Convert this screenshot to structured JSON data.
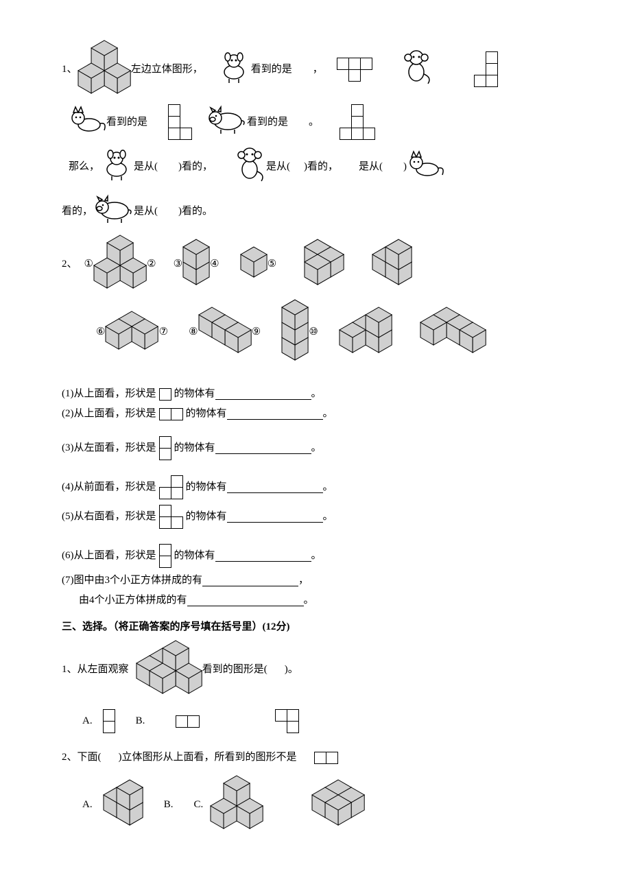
{
  "cell": 18,
  "isoCell": 22,
  "colors": {
    "cubeFill": "#d0d0d0",
    "cubeStroke": "#000000",
    "animalStroke": "#000000",
    "animalFill": "#ffffff"
  },
  "q1": {
    "num": "1、",
    "t1a": "左边立体图形，",
    "t1b": "看到的是",
    "comma": "，",
    "t2": "看到的是",
    "t3": "看到的是",
    "period": "。",
    "line3a": "那么，",
    "line3b": "是从(",
    "line3c": ")看的，",
    "line3d": "是从(",
    "line3e": ")看的，",
    "line3f": "是从(",
    "line3g": ")",
    "line4a": "看的，",
    "line4b": "是从(",
    "line4c": ")看的。",
    "animals": {
      "dog": "dog",
      "monkey": "monkey",
      "cat": "cat",
      "pig": "pig"
    }
  },
  "q2": {
    "num": "2、",
    "labels": [
      "①",
      "②",
      "③",
      "④",
      "⑤",
      "⑥",
      "⑦",
      "⑧",
      "⑨",
      "⑩"
    ],
    "sub": [
      {
        "pre": "(1)从上面看，形状是",
        "grid": [
          [
            1
          ]
        ],
        "post": "的物体有"
      },
      {
        "pre": "(2)从上面看，形状是",
        "grid": [
          [
            1,
            1
          ]
        ],
        "post": "的物体有"
      },
      {
        "pre": "(3)从左面看，形状是",
        "grid": [
          [
            1
          ],
          [
            1
          ]
        ],
        "post": "的物体有"
      },
      {
        "pre": "(4)从前面看，形状是",
        "grid": [
          [
            0,
            1
          ],
          [
            1,
            1
          ]
        ],
        "post": "的物体有"
      },
      {
        "pre": "(5)从右面看，形状是",
        "grid": [
          [
            1,
            0
          ],
          [
            1,
            1
          ]
        ],
        "post": "的物体有"
      },
      {
        "pre": "(6)从上面看，形状是",
        "grid": [
          [
            1
          ],
          [
            1
          ]
        ],
        "post": "的物体有"
      }
    ],
    "s7a": "(7)图中由3个小正方体拼成的有",
    "s7b": "由4个小正方体拼成的有",
    "end": "。",
    "comma": "，"
  },
  "sec3": {
    "title": "三、选择。（将正确答案的序号填在括号里）(12分)",
    "q1": {
      "text1": "1、从左面观察",
      "text2": "看到的图形是(",
      "text3": ")。",
      "opts": {
        "A": "A.",
        "B": "B.",
        "C": ""
      },
      "gridA": [
        [
          1
        ],
        [
          1
        ]
      ],
      "gridB": [
        [
          1,
          1
        ]
      ],
      "gridC": [
        [
          1,
          1
        ],
        [
          0,
          1
        ]
      ]
    },
    "q2": {
      "text1": "2、下面(",
      "text2": ")立体图形从上面看，所看到的图形不是",
      "shape": [
        [
          1,
          1
        ]
      ],
      "opts": {
        "A": "A.",
        "B": "B.",
        "C": "C."
      }
    }
  }
}
